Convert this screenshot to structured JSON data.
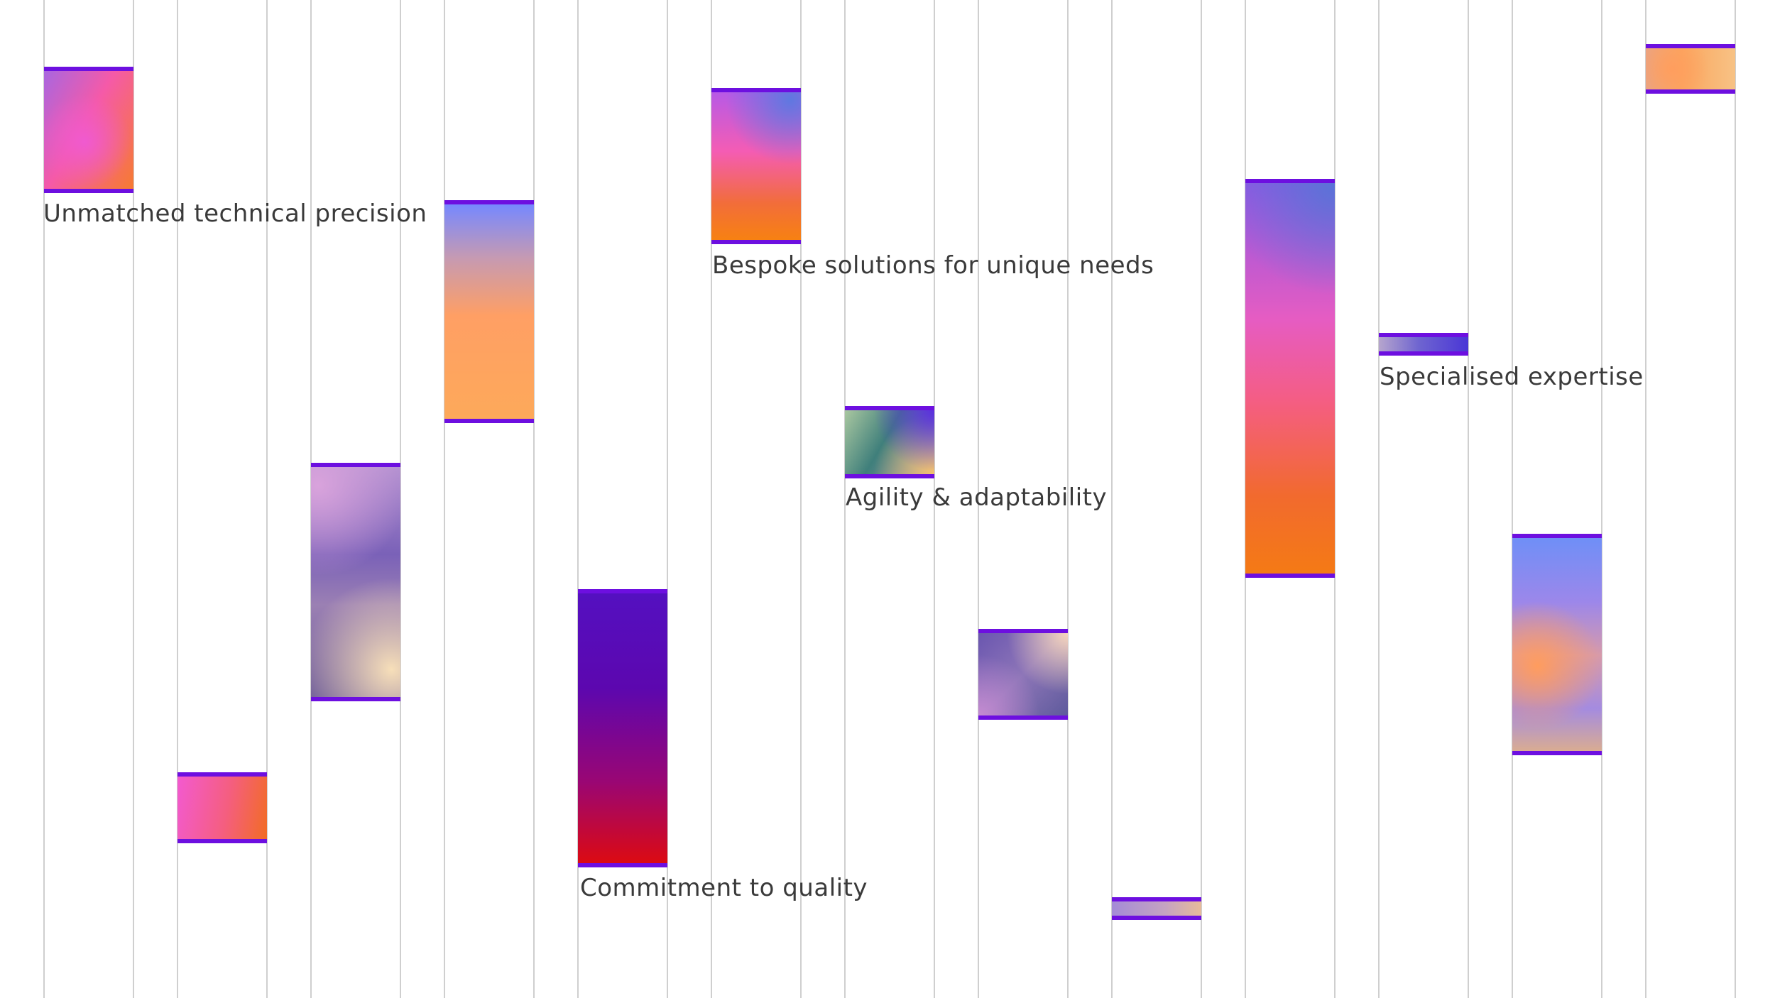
{
  "captions": {
    "precision": "Unmatched technical precision",
    "bespoke": "Bespoke solutions for unique needs",
    "agility": "Agility & adaptability",
    "expertise": "Specialised expertise",
    "quality": "Commitment to quality"
  },
  "colors": {
    "background": "#ffffff",
    "grid_line": "#cfcfcf",
    "block_border": "#6d0fe0",
    "caption_text": "#3a3a3a"
  }
}
